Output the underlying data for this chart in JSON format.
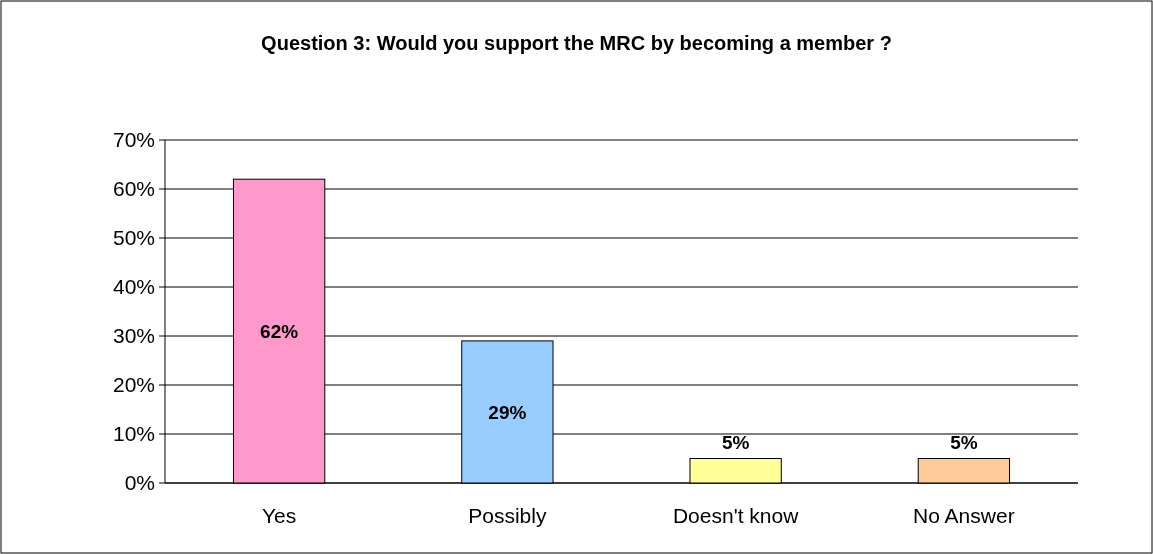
{
  "chart_data": {
    "type": "bar",
    "title": "Question 3: Would you support the MRC by becoming a member ?",
    "categories": [
      "Yes",
      "Possibly",
      "Doesn't know",
      "No Answer"
    ],
    "values": [
      62,
      29,
      5,
      5
    ],
    "value_labels": [
      "62%",
      "29%",
      "5%",
      "5%"
    ],
    "colors": [
      "#ff99cc",
      "#99ccff",
      "#ffff99",
      "#ffcc99"
    ],
    "ylim": [
      0,
      70
    ],
    "yticks": [
      {
        "value": 0,
        "label": "0%"
      },
      {
        "value": 10,
        "label": "10%"
      },
      {
        "value": 20,
        "label": "20%"
      },
      {
        "value": 30,
        "label": "30%"
      },
      {
        "value": 40,
        "label": "40%"
      },
      {
        "value": 50,
        "label": "50%"
      },
      {
        "value": 60,
        "label": "60%"
      },
      {
        "value": 70,
        "label": "70%"
      }
    ],
    "grid": "y"
  }
}
